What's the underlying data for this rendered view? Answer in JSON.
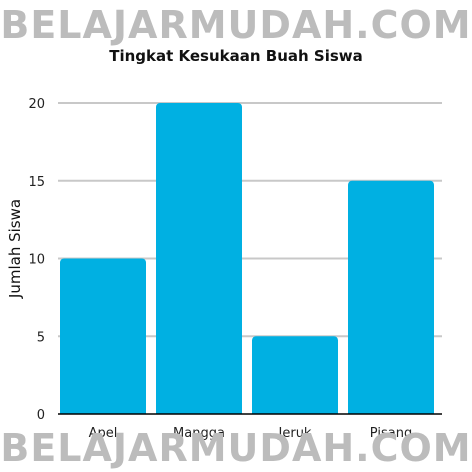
{
  "watermark": {
    "text": "BELAJARMUDAH.COM"
  },
  "colors": {
    "bar": "#00b0e2",
    "grid": "#c8c8c8",
    "axis": "#000000",
    "watermark": "#bcbcbc"
  },
  "chart_data": {
    "type": "bar",
    "title": "Tingkat Kesukaan Buah Siswa",
    "xlabel": "",
    "ylabel": "Jumlah Siswa",
    "categories": [
      "Apel",
      "Mangga",
      "Jeruk",
      "Pisang"
    ],
    "values": [
      10,
      20,
      5,
      15
    ],
    "ylim": [
      0,
      20
    ],
    "yticks": [
      0,
      5,
      10,
      15,
      20
    ],
    "grid": true,
    "legend": "none"
  }
}
